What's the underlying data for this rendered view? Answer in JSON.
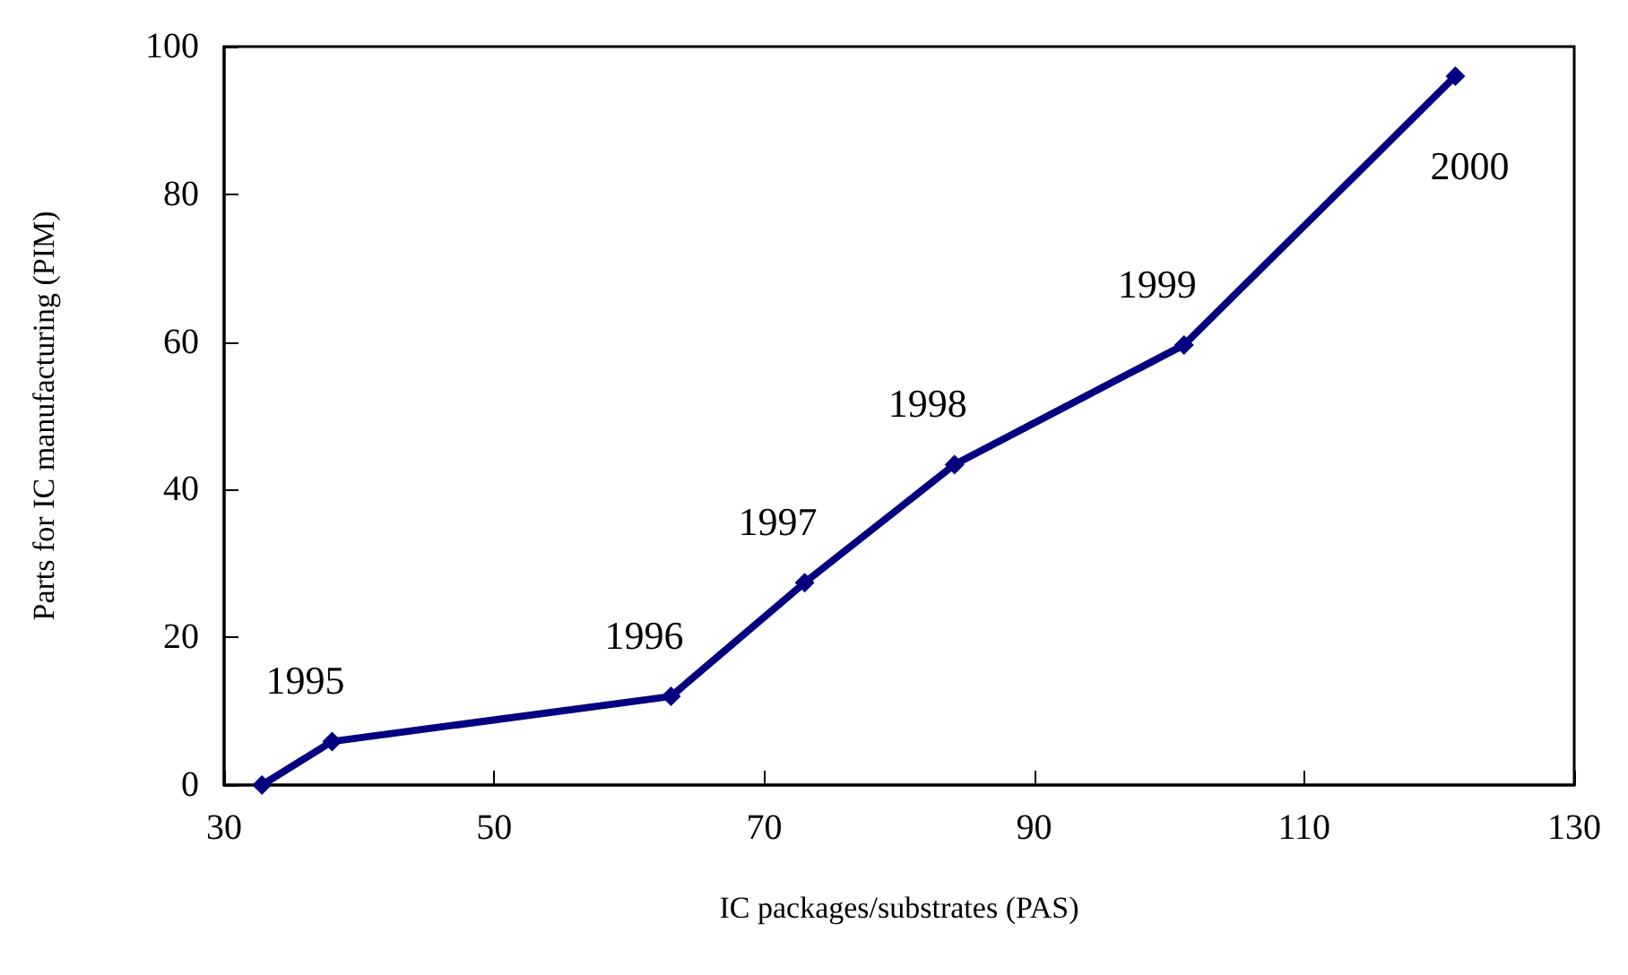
{
  "chart_data": {
    "type": "line",
    "xlabel": "IC packages/substrates (PAS)",
    "ylabel": "Parts for IC manufacturing (PIM)",
    "x": [
      32.8,
      38.0,
      63.1,
      73.0,
      84.1,
      101.1,
      121.2
    ],
    "series": [
      {
        "color": "#000080",
        "values": [
          0,
          5.9,
          12.0,
          27.4,
          43.4,
          59.6,
          96.0
        ]
      }
    ],
    "xlim": [
      30,
      130
    ],
    "xticks": [
      30,
      50,
      70,
      90,
      110,
      130
    ],
    "ylim": [
      0,
      100
    ],
    "yticks": [
      0,
      20,
      40,
      60,
      80,
      100
    ],
    "grid": false,
    "marker": "diamond",
    "line_style": "solid",
    "annotations": [
      {
        "text": "1995",
        "x": 38.0,
        "y": 5.9
      },
      {
        "text": "1996",
        "x": 63.1,
        "y": 12.0
      },
      {
        "text": "1997",
        "x": 73.0,
        "y": 27.4
      },
      {
        "text": "1998",
        "x": 84.1,
        "y": 43.4
      },
      {
        "text": "1999",
        "x": 101.1,
        "y": 59.6
      },
      {
        "text": "2000",
        "x": 121.2,
        "y": 96.0
      }
    ]
  }
}
